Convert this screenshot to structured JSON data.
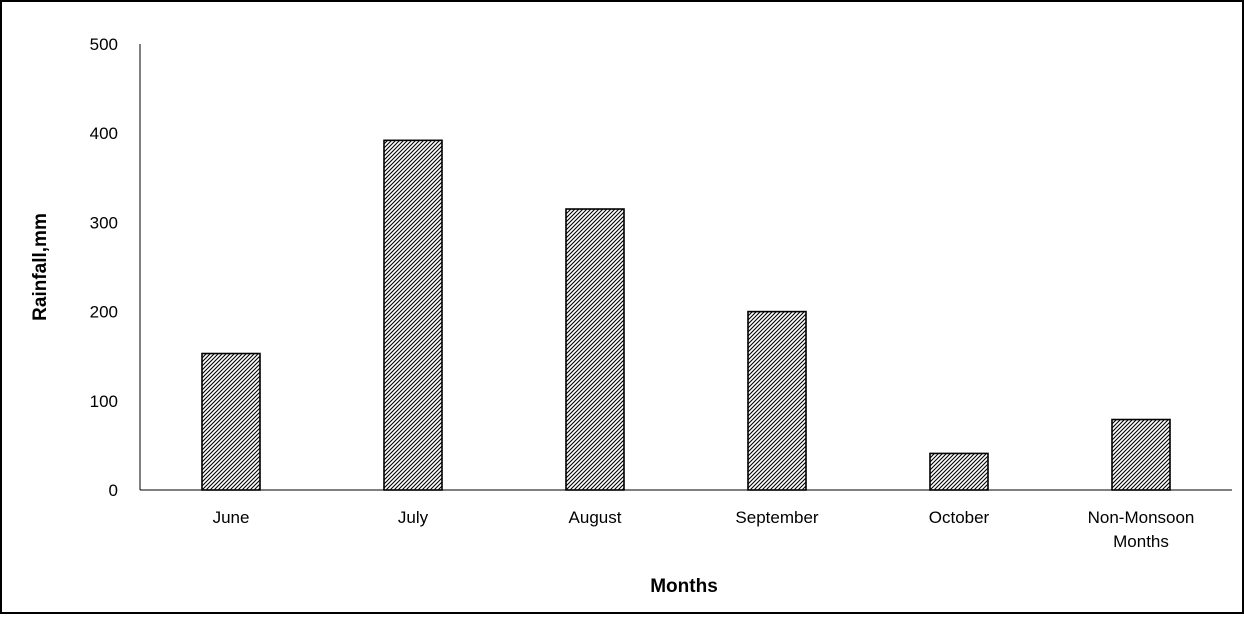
{
  "chart_data": {
    "type": "bar",
    "title": "",
    "xlabel": "Months",
    "ylabel": "Rainfall,mm",
    "categories": [
      [
        "June"
      ],
      [
        "July"
      ],
      [
        "August"
      ],
      [
        "September"
      ],
      [
        "October"
      ],
      [
        "Non-Monsoon",
        "Months"
      ]
    ],
    "values": [
      153,
      392,
      315,
      200,
      41,
      79
    ],
    "ylim": [
      0,
      500
    ],
    "yticks": [
      "0",
      "100",
      "200",
      "300",
      "400",
      "500"
    ],
    "grid": false,
    "legend": "none",
    "bar_fill": "diagonal-hatch",
    "bar_color": "#000000"
  }
}
